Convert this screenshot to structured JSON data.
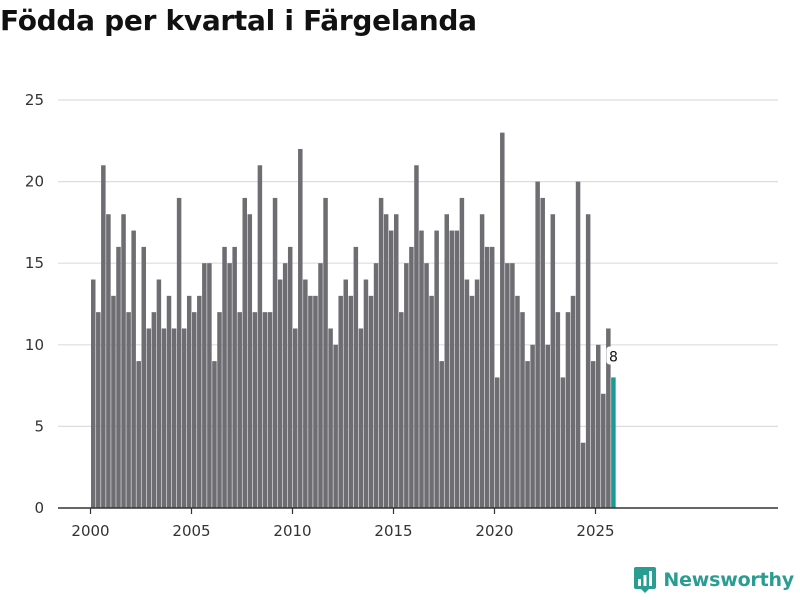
{
  "brand": {
    "name": "Newsworthy",
    "color": "#2a9d92"
  },
  "chart_data": {
    "type": "bar",
    "title": "Födda per kvartal i Färgelanda",
    "xlabel": "",
    "ylabel": "",
    "ylim": [
      0,
      25
    ],
    "yticks": [
      0,
      5,
      10,
      15,
      20,
      25
    ],
    "xticks": [
      "2000",
      "2005",
      "2010",
      "2015",
      "2020",
      "2025"
    ],
    "start_year": 2000,
    "bar_color": "#6d6d72",
    "highlight_color": "#1a9a92",
    "highlight_label": "8",
    "grid": true,
    "categories": [
      "2000 K1",
      "2000 K2",
      "2000 K3",
      "2000 K4",
      "2001 K1",
      "2001 K2",
      "2001 K3",
      "2001 K4",
      "2002 K1",
      "2002 K2",
      "2002 K3",
      "2002 K4",
      "2003 K1",
      "2003 K2",
      "2003 K3",
      "2003 K4",
      "2004 K1",
      "2004 K2",
      "2004 K3",
      "2004 K4",
      "2005 K1",
      "2005 K2",
      "2005 K3",
      "2005 K4",
      "2006 K1",
      "2006 K2",
      "2006 K3",
      "2006 K4",
      "2007 K1",
      "2007 K2",
      "2007 K3",
      "2007 K4",
      "2008 K1",
      "2008 K2",
      "2008 K3",
      "2008 K4",
      "2009 K1",
      "2009 K2",
      "2009 K3",
      "2009 K4",
      "2010 K1",
      "2010 K2",
      "2010 K3",
      "2010 K4",
      "2011 K1",
      "2011 K2",
      "2011 K3",
      "2011 K4",
      "2012 K1",
      "2012 K2",
      "2012 K3",
      "2012 K4",
      "2013 K1",
      "2013 K2",
      "2013 K3",
      "2013 K4",
      "2014 K1",
      "2014 K2",
      "2014 K3",
      "2014 K4",
      "2015 K1",
      "2015 K2",
      "2015 K3",
      "2015 K4",
      "2016 K1",
      "2016 K2",
      "2016 K3",
      "2016 K4",
      "2017 K1",
      "2017 K2",
      "2017 K3",
      "2017 K4",
      "2018 K1",
      "2018 K2",
      "2018 K3",
      "2018 K4",
      "2019 K1",
      "2019 K2",
      "2019 K3",
      "2019 K4",
      "2020 K1",
      "2020 K2",
      "2020 K3",
      "2020 K4",
      "2021 K1",
      "2021 K2",
      "2021 K3",
      "2021 K4",
      "2022 K1",
      "2022 K2",
      "2022 K3",
      "2022 K4",
      "2023 K1",
      "2023 K2",
      "2023 K3",
      "2023 K4",
      "2024 K1",
      "2024 K2",
      "2024 K3",
      "2024 K4",
      "2025 K1",
      "2025 K2",
      "2025 K3",
      "2025 K4"
    ],
    "values": [
      14,
      12,
      21,
      18,
      13,
      16,
      18,
      12,
      17,
      9,
      16,
      11,
      12,
      14,
      11,
      13,
      11,
      19,
      11,
      13,
      12,
      13,
      15,
      15,
      9,
      12,
      16,
      15,
      16,
      12,
      19,
      18,
      12,
      21,
      12,
      12,
      19,
      14,
      15,
      16,
      11,
      22,
      14,
      13,
      13,
      15,
      19,
      11,
      10,
      13,
      14,
      13,
      16,
      11,
      14,
      13,
      15,
      19,
      18,
      17,
      18,
      12,
      15,
      16,
      21,
      17,
      15,
      13,
      17,
      9,
      18,
      17,
      17,
      19,
      14,
      13,
      14,
      18,
      16,
      16,
      8,
      23,
      15,
      15,
      13,
      12,
      9,
      10,
      20,
      19,
      10,
      18,
      12,
      8,
      12,
      13,
      20,
      4,
      18,
      9,
      10,
      7,
      11,
      8
    ]
  }
}
